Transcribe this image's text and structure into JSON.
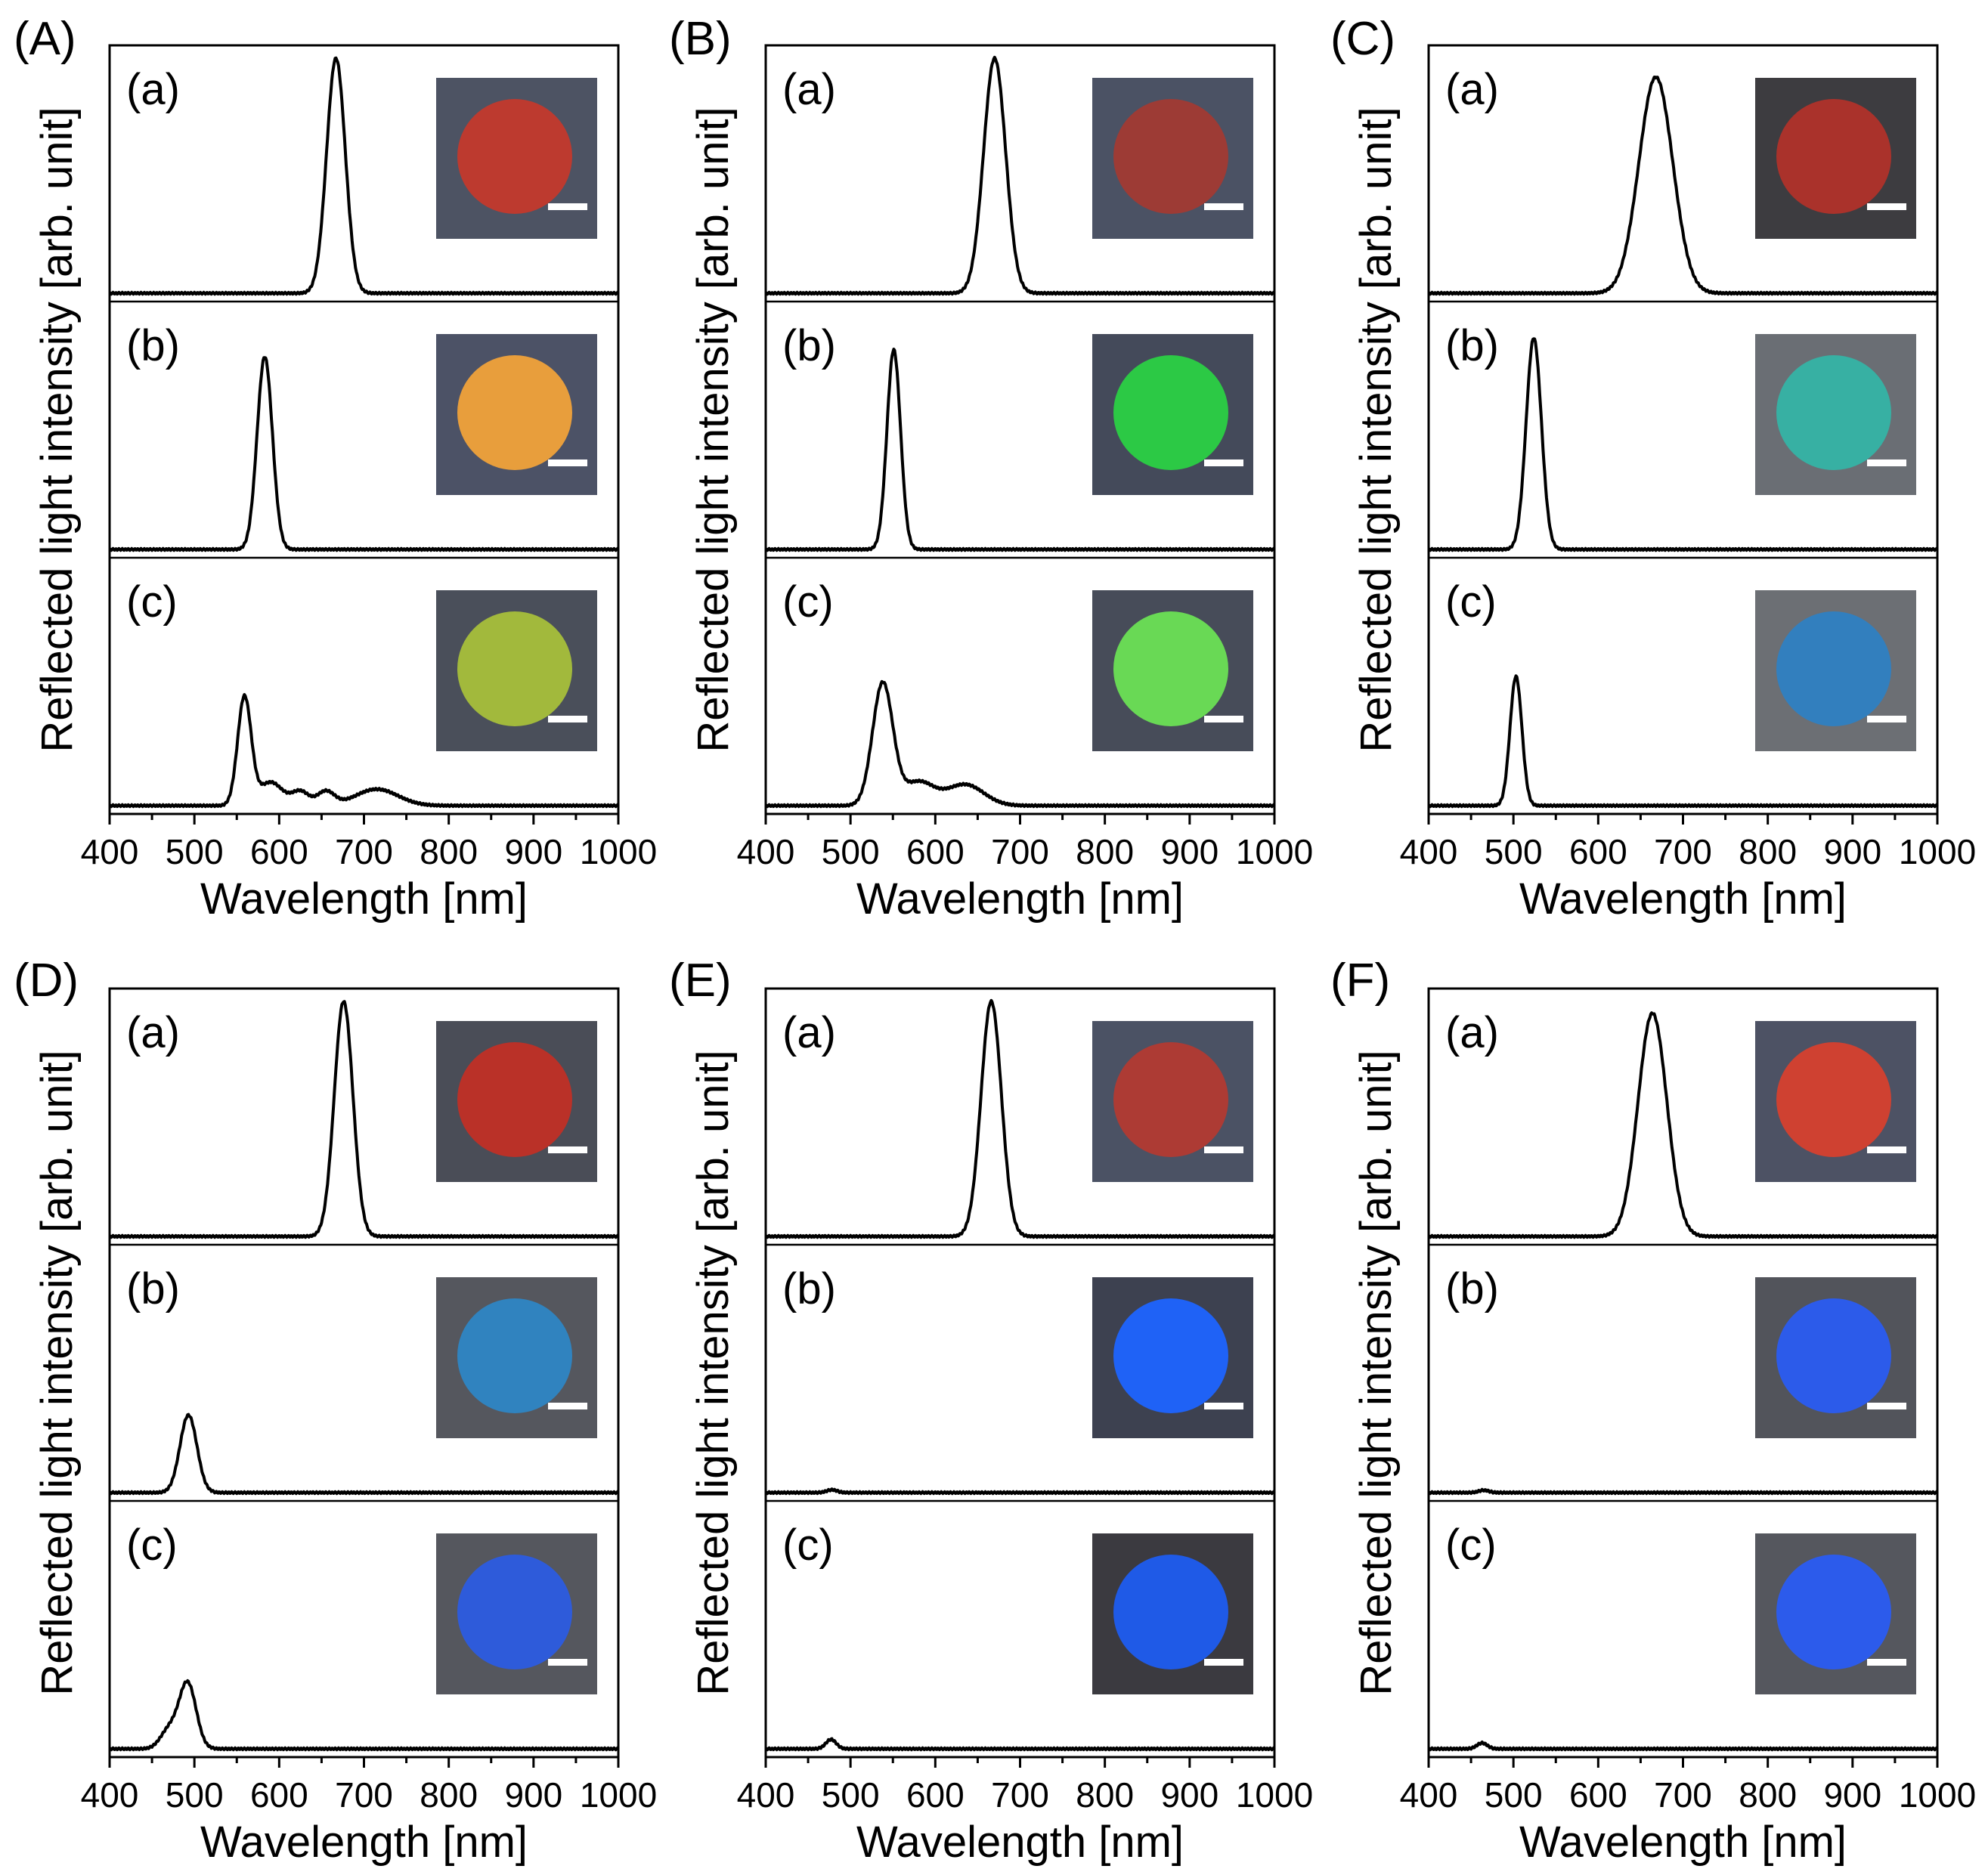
{
  "figure": {
    "x_range": [
      400,
      1000
    ],
    "x_ticks": [
      400,
      500,
      600,
      700,
      800,
      900,
      1000
    ],
    "xlabel": "Wavelength [nm]",
    "ylabel": "Reflected light intensity [arb. unit]",
    "sub_labels": [
      "(a)",
      "(b)",
      "(c)"
    ]
  },
  "chart_data": [
    {
      "panel": "(A)",
      "type": "line",
      "xlabel": "Wavelength [nm]",
      "ylabel": "Reflected light intensity [arb. unit]",
      "xlim": [
        400,
        1000
      ],
      "series": [
        {
          "label": "(a)",
          "peaks": [
            {
              "x": 667,
              "w": 11,
              "h": 1.0
            }
          ],
          "photo": {
            "disc": "#c3392c",
            "bg": "#4d5363"
          }
        },
        {
          "label": "(b)",
          "peaks": [
            {
              "x": 583,
              "w": 9,
              "h": 0.82
            }
          ],
          "photo": {
            "disc": "#f0a23a",
            "bg": "#4c5266"
          }
        },
        {
          "label": "(c)",
          "peaks": [
            {
              "x": 559,
              "w": 8,
              "h": 0.46
            },
            {
              "x": 590,
              "w": 14,
              "h": 0.1
            },
            {
              "x": 625,
              "w": 10,
              "h": 0.06
            },
            {
              "x": 655,
              "w": 10,
              "h": 0.06
            },
            {
              "x": 715,
              "w": 25,
              "h": 0.07
            }
          ],
          "photo": {
            "disc": "#a7bf3b",
            "bg": "#4a4f5a"
          }
        }
      ]
    },
    {
      "panel": "(B)",
      "type": "line",
      "xlabel": "Wavelength [nm]",
      "ylabel": "Reflected light intensity [arb. unit]",
      "xlim": [
        400,
        1000
      ],
      "series": [
        {
          "label": "(a)",
          "peaks": [
            {
              "x": 670,
              "w": 13,
              "h": 1.0
            }
          ],
          "photo": {
            "disc": "#a13a33",
            "bg": "#4b5264"
          }
        },
        {
          "label": "(b)",
          "peaks": [
            {
              "x": 551,
              "w": 8,
              "h": 0.85
            }
          ],
          "photo": {
            "disc": "#2bd044",
            "bg": "#444a5a"
          }
        },
        {
          "label": "(c)",
          "peaks": [
            {
              "x": 538,
              "w": 12,
              "h": 0.52
            },
            {
              "x": 580,
              "w": 18,
              "h": 0.1
            },
            {
              "x": 635,
              "w": 22,
              "h": 0.09
            }
          ],
          "photo": {
            "disc": "#6ce055",
            "bg": "#474c59"
          }
        }
      ]
    },
    {
      "panel": "(C)",
      "type": "line",
      "xlabel": "Wavelength [nm]",
      "ylabel": "Reflected light intensity [arb. unit]",
      "xlim": [
        400,
        1000
      ],
      "series": [
        {
          "label": "(a)",
          "peaks": [
            {
              "x": 668,
              "w": 20,
              "h": 0.92
            }
          ],
          "photo": {
            "disc": "#b0312a",
            "bg": "#3d3c40"
          }
        },
        {
          "label": "(b)",
          "peaks": [
            {
              "x": 524,
              "w": 9,
              "h": 0.9
            }
          ],
          "photo": {
            "disc": "#35b3a5",
            "bg": "#6a6e74"
          }
        },
        {
          "label": "(c)",
          "peaks": [
            {
              "x": 503,
              "w": 7,
              "h": 0.55
            }
          ],
          "photo": {
            "disc": "#2f7fc2",
            "bg": "#6c6f74"
          }
        }
      ]
    },
    {
      "panel": "(D)",
      "type": "line",
      "xlabel": "Wavelength [nm]",
      "ylabel": "Reflected light intensity [arb. unit]",
      "xlim": [
        400,
        1000
      ],
      "series": [
        {
          "label": "(a)",
          "peaks": [
            {
              "x": 676,
              "w": 11,
              "h": 1.0
            }
          ],
          "photo": {
            "disc": "#c02f26",
            "bg": "#4a4d57"
          }
        },
        {
          "label": "(b)",
          "peaks": [
            {
              "x": 493,
              "w": 10,
              "h": 0.33
            }
          ],
          "photo": {
            "disc": "#2e86c4",
            "bg": "#55575e"
          }
        },
        {
          "label": "(c)",
          "peaks": [
            {
              "x": 492,
              "w": 10,
              "h": 0.28
            },
            {
              "x": 470,
              "w": 10,
              "h": 0.08
            }
          ],
          "photo": {
            "disc": "#2c5ce0",
            "bg": "#55575e"
          }
        }
      ]
    },
    {
      "panel": "(E)",
      "type": "line",
      "xlabel": "Wavelength [nm]",
      "ylabel": "Reflected light intensity [arb. unit]",
      "xlim": [
        400,
        1000
      ],
      "series": [
        {
          "label": "(a)",
          "peaks": [
            {
              "x": 666,
              "w": 12,
              "h": 1.0
            }
          ],
          "photo": {
            "disc": "#b23a31",
            "bg": "#4b5264"
          }
        },
        {
          "label": "(b)",
          "peaks": [
            {
              "x": 478,
              "w": 6,
              "h": 0.012
            }
          ],
          "photo": {
            "disc": "#1e64ff",
            "bg": "#3d4150"
          }
        },
        {
          "label": "(c)",
          "peaks": [
            {
              "x": 477,
              "w": 6,
              "h": 0.04
            }
          ],
          "photo": {
            "disc": "#1e5cf0",
            "bg": "#3b3a40"
          }
        }
      ]
    },
    {
      "panel": "(F)",
      "type": "line",
      "xlabel": "Wavelength [nm]",
      "ylabel": "Reflected light intensity [arb. unit]",
      "xlim": [
        400,
        1000
      ],
      "series": [
        {
          "label": "(a)",
          "peaks": [
            {
              "x": 664,
              "w": 17,
              "h": 0.95
            }
          ],
          "photo": {
            "disc": "#d6402e",
            "bg": "#4d5264"
          }
        },
        {
          "label": "(b)",
          "peaks": [
            {
              "x": 465,
              "w": 6,
              "h": 0.01
            }
          ],
          "photo": {
            "disc": "#2a5cf2",
            "bg": "#52545b"
          }
        },
        {
          "label": "(c)",
          "peaks": [
            {
              "x": 463,
              "w": 6,
              "h": 0.025
            }
          ],
          "photo": {
            "disc": "#2a5cf2",
            "bg": "#55575e"
          }
        }
      ]
    }
  ]
}
